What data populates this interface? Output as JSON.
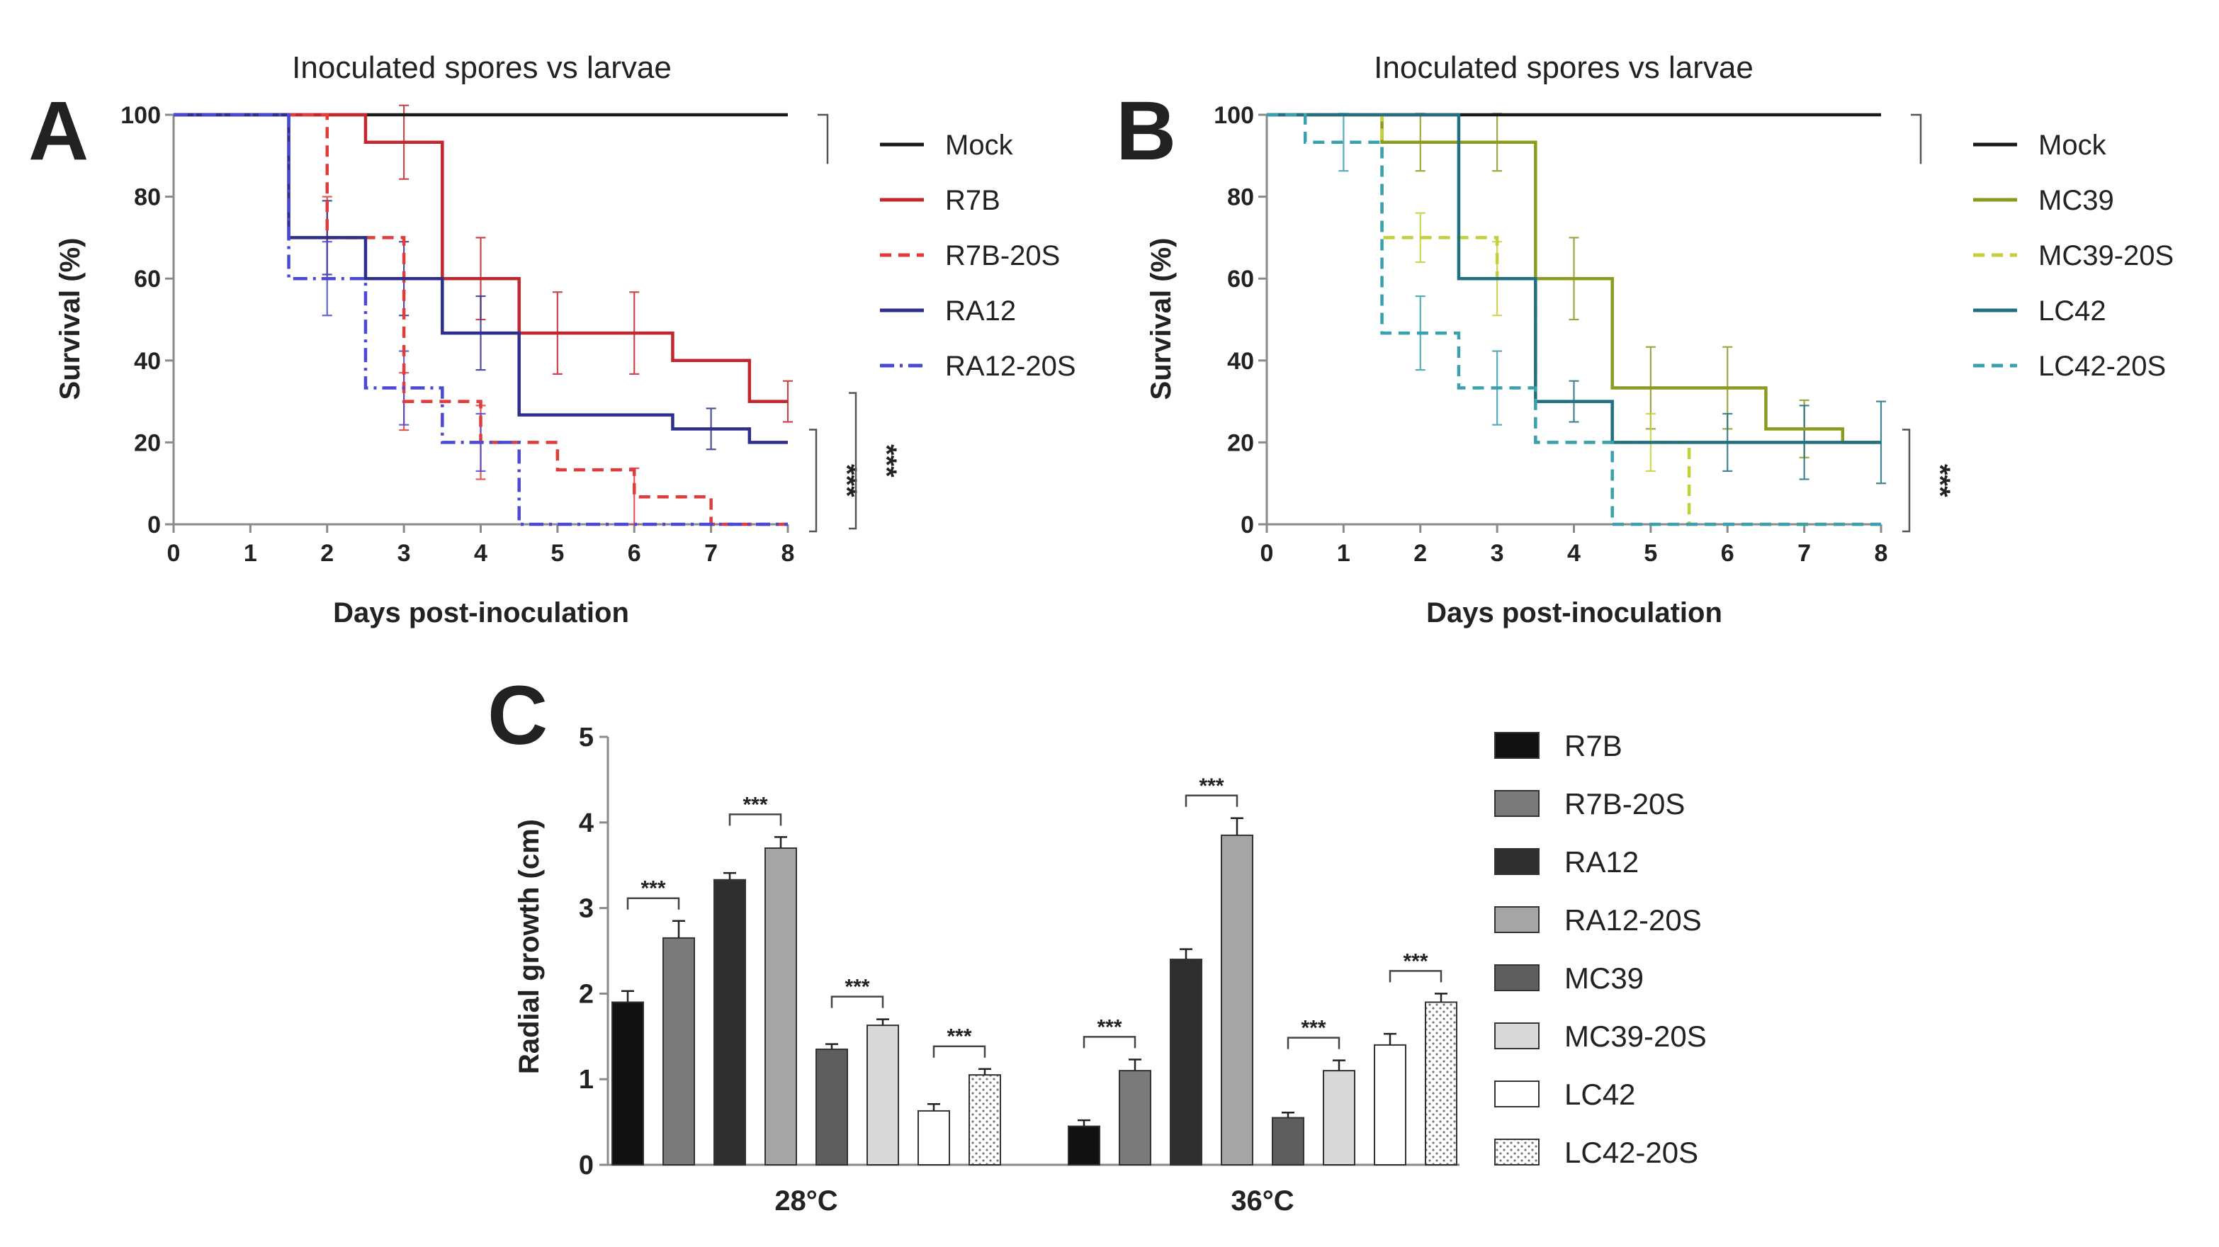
{
  "chart_data": [
    {
      "panel": "A",
      "type": "line",
      "subtype": "kaplan-meier survival",
      "title": "Inoculated spores vs larvae",
      "xlabel": "Days post-inoculation",
      "ylabel": "Survival (%)",
      "xlim": [
        0,
        8
      ],
      "ylim": [
        0,
        100
      ],
      "xticks": [
        "0",
        "1",
        "2",
        "3",
        "4",
        "5",
        "6",
        "7",
        "8"
      ],
      "yticks": [
        "0",
        "20",
        "40",
        "60",
        "80",
        "100"
      ],
      "legend_position": "right",
      "series": [
        {
          "name": "Mock",
          "color": "#1a1a1a",
          "dash": "solid",
          "steps": [
            [
              0,
              100
            ],
            [
              8,
              100
            ]
          ],
          "error_bars": []
        },
        {
          "name": "R7B",
          "color": "#c0282d",
          "dash": "solid",
          "steps": [
            [
              0,
              100
            ],
            [
              2.5,
              93.3
            ],
            [
              3.5,
              60
            ],
            [
              4.5,
              46.7
            ],
            [
              6.5,
              40
            ],
            [
              7.5,
              30
            ],
            [
              8,
              30
            ]
          ],
          "error_bars": [
            [
              3,
              93.3,
              9
            ],
            [
              4,
              60,
              10
            ],
            [
              5,
              46.7,
              10
            ],
            [
              6,
              46.7,
              10
            ],
            [
              8,
              30,
              5
            ]
          ]
        },
        {
          "name": "R7B-20S",
          "color": "#e23b3b",
          "dash": "dashed",
          "steps": [
            [
              0,
              100
            ],
            [
              2,
              70
            ],
            [
              3,
              30
            ],
            [
              4,
              20
            ],
            [
              5,
              13.3
            ],
            [
              6,
              6.7
            ],
            [
              7,
              0
            ],
            [
              8,
              0
            ]
          ],
          "error_bars": [
            [
              2,
              70,
              10
            ],
            [
              3,
              30,
              7
            ],
            [
              4,
              20,
              9
            ],
            [
              6,
              6.7,
              7
            ]
          ]
        },
        {
          "name": "RA12",
          "color": "#2e2f8c",
          "dash": "solid",
          "steps": [
            [
              0,
              100
            ],
            [
              1.5,
              70
            ],
            [
              2.5,
              60
            ],
            [
              3.5,
              46.7
            ],
            [
              4.5,
              26.7
            ],
            [
              6.5,
              23.3
            ],
            [
              7.5,
              20
            ],
            [
              8,
              20
            ]
          ],
          "error_bars": [
            [
              2,
              70,
              9
            ],
            [
              3,
              60,
              9
            ],
            [
              4,
              46.7,
              9
            ],
            [
              7,
              23.3,
              5
            ]
          ]
        },
        {
          "name": "RA12-20S",
          "color": "#4a49d6",
          "dash": "dashdot",
          "steps": [
            [
              0,
              100
            ],
            [
              1.5,
              60
            ],
            [
              2.5,
              33.3
            ],
            [
              3.5,
              20
            ],
            [
              4.5,
              0
            ],
            [
              8,
              0
            ]
          ],
          "error_bars": [
            [
              2,
              60,
              9
            ],
            [
              3,
              33.3,
              9
            ],
            [
              4,
              20,
              7
            ]
          ]
        }
      ],
      "significance": [
        {
          "label": "***",
          "from": "RA12",
          "to": "RA12-20S"
        },
        {
          "label": "***",
          "from": "R7B",
          "to": "R7B-20S"
        }
      ]
    },
    {
      "panel": "B",
      "type": "line",
      "subtype": "kaplan-meier survival",
      "title": "Inoculated spores vs larvae",
      "xlabel": "Days post-inoculation",
      "ylabel": "Survival (%)",
      "xlim": [
        0,
        8
      ],
      "ylim": [
        0,
        100
      ],
      "xticks": [
        "0",
        "1",
        "2",
        "3",
        "4",
        "5",
        "6",
        "7",
        "8"
      ],
      "yticks": [
        "0",
        "20",
        "40",
        "60",
        "80",
        "100"
      ],
      "legend_position": "right",
      "series": [
        {
          "name": "Mock",
          "color": "#1a1a1a",
          "dash": "solid",
          "steps": [
            [
              0,
              100
            ],
            [
              8,
              100
            ]
          ],
          "error_bars": []
        },
        {
          "name": "MC39",
          "color": "#8c9a1f",
          "dash": "solid",
          "steps": [
            [
              0,
              100
            ],
            [
              1.5,
              93.3
            ],
            [
              3.5,
              60
            ],
            [
              4.5,
              33.3
            ],
            [
              6.5,
              23.3
            ],
            [
              7.5,
              20
            ],
            [
              8,
              20
            ]
          ],
          "error_bars": [
            [
              2,
              93.3,
              7
            ],
            [
              3,
              93.3,
              7
            ],
            [
              4,
              60,
              10
            ],
            [
              5,
              33.3,
              10
            ],
            [
              6,
              33.3,
              10
            ],
            [
              7,
              23.3,
              7
            ]
          ]
        },
        {
          "name": "MC39-20S",
          "color": "#c5cf3a",
          "dash": "dashed",
          "steps": [
            [
              0,
              100
            ],
            [
              1.5,
              70
            ],
            [
              3,
              60
            ],
            [
              3.5,
              20
            ],
            [
              5.5,
              0
            ],
            [
              8,
              0
            ]
          ],
          "error_bars": [
            [
              2,
              70,
              6
            ],
            [
              3,
              60,
              9
            ],
            [
              5,
              20,
              7
            ]
          ]
        },
        {
          "name": "LC42",
          "color": "#236f82",
          "dash": "solid",
          "steps": [
            [
              0,
              100
            ],
            [
              2.5,
              93.3
            ],
            [
              2.5,
              60
            ],
            [
              3.5,
              30
            ],
            [
              4.5,
              20
            ],
            [
              8,
              20
            ]
          ],
          "error_bars": [
            [
              4,
              30,
              5
            ],
            [
              6,
              20,
              7
            ],
            [
              7,
              20,
              9
            ],
            [
              8,
              20,
              10
            ]
          ]
        },
        {
          "name": "LC42-20S",
          "color": "#3aa0b0",
          "dash": "dashed",
          "steps": [
            [
              0,
              100
            ],
            [
              0.5,
              93.3
            ],
            [
              1.5,
              46.7
            ],
            [
              2.5,
              33.3
            ],
            [
              3.5,
              20
            ],
            [
              4.5,
              0
            ],
            [
              8,
              0
            ]
          ],
          "error_bars": [
            [
              1,
              93.3,
              7
            ],
            [
              2,
              46.7,
              9
            ],
            [
              3,
              33.3,
              9
            ]
          ]
        }
      ],
      "significance": [
        {
          "label": "***",
          "from": "LC42",
          "to": "LC42-20S"
        }
      ]
    },
    {
      "panel": "C",
      "type": "bar",
      "title": "",
      "xlabel": "",
      "ylabel": "Radial growth (cm)",
      "ylim": [
        0,
        5
      ],
      "yticks": [
        "0",
        "1",
        "2",
        "3",
        "4",
        "5"
      ],
      "categories": [
        "28°C",
        "36°C"
      ],
      "legend_position": "right",
      "series": [
        {
          "name": "R7B",
          "fill": "#111111",
          "pattern": "none",
          "values": [
            1.9,
            0.45
          ],
          "errors": [
            0.13,
            0.07
          ]
        },
        {
          "name": "R7B-20S",
          "fill": "#7a7a7a",
          "pattern": "none",
          "values": [
            2.65,
            1.1
          ],
          "errors": [
            0.2,
            0.13
          ]
        },
        {
          "name": "RA12",
          "fill": "#2f2f2f",
          "pattern": "none",
          "values": [
            3.33,
            2.4
          ],
          "errors": [
            0.08,
            0.12
          ]
        },
        {
          "name": "RA12-20S",
          "fill": "#a5a5a5",
          "pattern": "none",
          "values": [
            3.7,
            3.85
          ],
          "errors": [
            0.13,
            0.2
          ]
        },
        {
          "name": "MC39",
          "fill": "#5e5e5e",
          "pattern": "none",
          "values": [
            1.35,
            0.55
          ],
          "errors": [
            0.06,
            0.06
          ]
        },
        {
          "name": "MC39-20S",
          "fill": "#d9d9d9",
          "pattern": "none",
          "values": [
            1.63,
            1.1
          ],
          "errors": [
            0.07,
            0.12
          ]
        },
        {
          "name": "LC42",
          "fill": "#ffffff",
          "pattern": "none",
          "values": [
            0.63,
            1.4
          ],
          "errors": [
            0.08,
            0.13
          ]
        },
        {
          "name": "LC42-20S",
          "fill": "#ffffff",
          "pattern": "dots",
          "values": [
            1.05,
            1.9
          ],
          "errors": [
            0.07,
            0.1
          ]
        }
      ],
      "significance": [
        {
          "label": "***",
          "category": "28°C",
          "from": "R7B",
          "to": "R7B-20S"
        },
        {
          "label": "***",
          "category": "28°C",
          "from": "RA12",
          "to": "RA12-20S"
        },
        {
          "label": "***",
          "category": "28°C",
          "from": "MC39",
          "to": "MC39-20S"
        },
        {
          "label": "***",
          "category": "28°C",
          "from": "LC42",
          "to": "LC42-20S"
        },
        {
          "label": "***",
          "category": "36°C",
          "from": "R7B",
          "to": "R7B-20S"
        },
        {
          "label": "***",
          "category": "36°C",
          "from": "RA12",
          "to": "RA12-20S"
        },
        {
          "label": "***",
          "category": "36°C",
          "from": "MC39",
          "to": "MC39-20S"
        },
        {
          "label": "***",
          "category": "36°C",
          "from": "LC42",
          "to": "LC42-20S"
        }
      ]
    }
  ]
}
